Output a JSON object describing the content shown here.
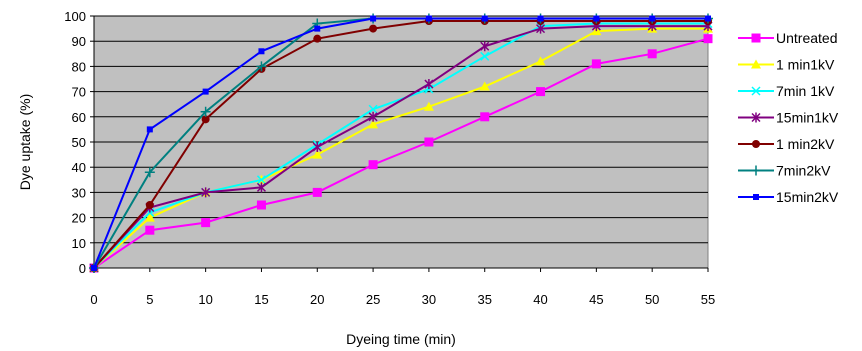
{
  "chart_data": {
    "type": "line",
    "title": "",
    "xlabel": "Dyeing time (min)",
    "ylabel": "Dye uptake (%)",
    "x": [
      0,
      5,
      10,
      15,
      20,
      25,
      30,
      35,
      40,
      45,
      50,
      55
    ],
    "xlim": [
      0,
      55
    ],
    "ylim": [
      0,
      100
    ],
    "x_ticks": [
      "0",
      "5",
      "10",
      "15",
      "20",
      "25",
      "30",
      "35",
      "40",
      "45",
      "50",
      "55"
    ],
    "y_ticks": [
      "0",
      "10",
      "20",
      "30",
      "40",
      "50",
      "60",
      "70",
      "80",
      "90",
      "100"
    ],
    "grid": "horizontal",
    "plot_background": "#c0c0c0",
    "legend_position": "right",
    "series": [
      {
        "name": "Untreated",
        "color": "#ff00ff",
        "marker": "square",
        "values": [
          0,
          15,
          18,
          25,
          30,
          41,
          50,
          60,
          70,
          81,
          85,
          91
        ]
      },
      {
        "name": "1 min1kV",
        "color": "#ffff00",
        "marker": "triangle",
        "values": [
          0,
          20,
          30,
          35,
          45,
          57,
          64,
          72,
          82,
          94,
          95,
          95
        ]
      },
      {
        "name": "7min 1kV",
        "color": "#00ffff",
        "marker": "x",
        "values": [
          0,
          22,
          30,
          35,
          49,
          63,
          71,
          84,
          96,
          97,
          97,
          97
        ]
      },
      {
        "name": "15min1kV",
        "color": "#800080",
        "marker": "asterisk",
        "values": [
          0,
          24,
          30,
          32,
          48,
          60,
          73,
          88,
          95,
          96,
          96,
          96
        ]
      },
      {
        "name": "1 min2kV",
        "color": "#800000",
        "marker": "circle",
        "values": [
          0,
          25,
          59,
          79,
          91,
          95,
          98,
          98,
          98,
          98,
          98,
          98
        ]
      },
      {
        "name": "7min2kV",
        "color": "#008080",
        "marker": "plus",
        "values": [
          0,
          38,
          62,
          80,
          97,
          99,
          99,
          99,
          99,
          99,
          99,
          99
        ]
      },
      {
        "name": "15min2kV",
        "color": "#0000ff",
        "marker": "smallsquare",
        "values": [
          0,
          55,
          70,
          86,
          95,
          99,
          99,
          99,
          99,
          99,
          99,
          99
        ]
      }
    ]
  }
}
